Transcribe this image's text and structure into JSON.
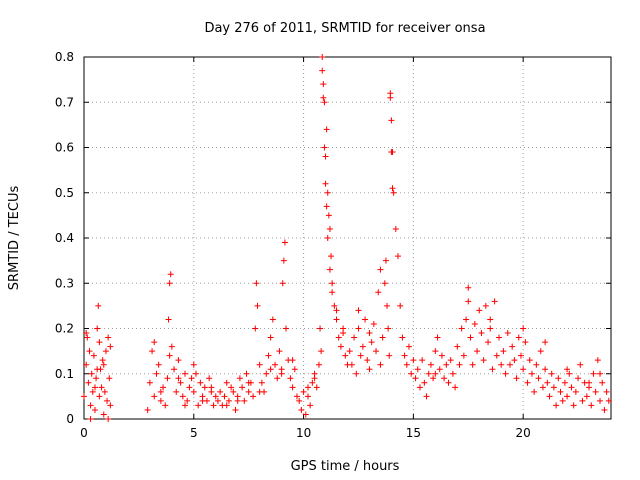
{
  "chart_data": {
    "type": "scatter",
    "title": "Day 276 of 2011, SRMTID for receiver onsa",
    "xlabel": "GPS time / hours",
    "ylabel": "SRMTID / TECUs",
    "xlim": [
      0,
      24
    ],
    "ylim": [
      0,
      0.8
    ],
    "xticks": [
      0,
      5,
      10,
      15,
      20
    ],
    "xtick_labels": [
      "0",
      "5",
      "10",
      "15",
      "20"
    ],
    "yticks": [
      0,
      0.1,
      0.2,
      0.3,
      0.4,
      0.5,
      0.6,
      0.7,
      0.8
    ],
    "ytick_labels": [
      "0",
      "0.1",
      "0.2",
      "0.3",
      "0.4",
      "0.5",
      "0.6",
      "0.7",
      "0.8"
    ],
    "grid": true,
    "marker": "plus",
    "marker_color": "#ff0000",
    "series": [
      {
        "name": "onsa",
        "x": [
          0.0,
          0.1,
          0.15,
          0.2,
          0.25,
          0.3,
          0.35,
          0.4,
          0.45,
          0.5,
          0.55,
          0.6,
          0.65,
          0.7,
          0.75,
          0.8,
          0.85,
          0.9,
          0.95,
          1.0,
          1.05,
          1.1,
          1.15,
          1.2,
          0.6,
          0.7,
          1.2,
          0.1,
          0.3,
          0.5,
          0.9,
          1.1,
          2.9,
          3.0,
          3.1,
          3.2,
          3.3,
          3.4,
          3.5,
          3.6,
          3.7,
          3.8,
          3.85,
          3.9,
          3.95,
          4.0,
          4.1,
          4.2,
          4.3,
          4.4,
          4.5,
          4.6,
          4.7,
          4.8,
          4.9,
          5.0,
          5.1,
          5.2,
          5.3,
          5.4,
          5.5,
          5.6,
          5.7,
          5.8,
          5.9,
          6.0,
          3.2,
          3.5,
          3.9,
          4.3,
          4.6,
          5.0,
          5.4,
          5.8,
          6.1,
          6.2,
          6.3,
          6.4,
          6.5,
          6.6,
          6.7,
          6.8,
          6.9,
          7.0,
          7.1,
          7.2,
          7.3,
          7.4,
          7.5,
          7.6,
          7.7,
          7.8,
          7.85,
          7.9,
          8.0,
          8.1,
          8.2,
          8.3,
          8.4,
          8.5,
          8.6,
          8.7,
          8.8,
          8.9,
          9.0,
          9.05,
          9.1,
          9.15,
          9.2,
          9.3,
          9.4,
          9.5,
          9.6,
          9.7,
          6.5,
          7.0,
          7.5,
          8.0,
          8.5,
          9.0,
          9.5,
          9.8,
          9.9,
          10.0,
          10.1,
          10.2,
          10.3,
          10.4,
          10.5,
          10.6,
          10.7,
          10.75,
          10.8,
          10.85,
          10.9,
          10.95,
          11.0,
          11.05,
          11.1,
          11.15,
          11.2,
          11.25,
          11.3,
          11.4,
          11.5,
          11.6,
          11.7,
          11.8,
          11.9,
          12.0,
          10.85,
          10.9,
          10.95,
          11.0,
          11.05,
          11.1,
          11.2,
          11.3,
          11.5,
          11.8,
          10.2,
          10.5,
          12.1,
          12.2,
          12.3,
          12.4,
          12.5,
          12.6,
          12.7,
          12.8,
          12.9,
          13.0,
          13.1,
          13.2,
          13.3,
          13.4,
          13.5,
          13.6,
          13.7,
          13.75,
          13.8,
          13.85,
          13.9,
          13.95,
          14.0,
          14.05,
          14.1,
          14.2,
          14.3,
          14.4,
          14.5,
          14.6,
          14.7,
          14.8,
          14.9,
          15.0,
          13.95,
          14.0,
          14.05,
          13.5,
          12.5,
          13.0,
          15.1,
          15.2,
          15.3,
          15.4,
          15.5,
          15.6,
          15.7,
          15.8,
          15.9,
          16.0,
          16.1,
          16.2,
          16.3,
          16.4,
          16.5,
          16.6,
          16.7,
          16.8,
          16.9,
          17.0,
          17.1,
          17.2,
          17.3,
          17.4,
          17.5,
          17.6,
          17.7,
          17.8,
          17.9,
          18.0,
          18.1,
          18.2,
          18.3,
          18.4,
          18.5,
          18.6,
          18.7,
          18.8,
          18.9,
          19.0,
          17.5,
          18.5,
          16.0,
          19.1,
          19.2,
          19.3,
          19.4,
          19.5,
          19.6,
          19.7,
          19.8,
          19.9,
          20.0,
          20.1,
          20.2,
          20.3,
          20.4,
          20.5,
          20.6,
          20.7,
          20.8,
          20.9,
          21.0,
          21.1,
          21.2,
          21.3,
          21.4,
          21.5,
          21.6,
          21.7,
          21.8,
          21.9,
          22.0,
          22.1,
          22.2,
          22.3,
          22.4,
          22.5,
          22.6,
          22.7,
          22.8,
          22.9,
          23.0,
          23.1,
          23.2,
          23.3,
          23.4,
          23.5,
          23.6,
          23.7,
          23.8,
          23.9,
          20.0,
          21.0,
          22.0,
          23.0,
          23.5
        ],
        "y": [
          0.05,
          0.12,
          0.18,
          0.08,
          0.15,
          0.03,
          0.1,
          0.06,
          0.14,
          0.02,
          0.09,
          0.2,
          0.25,
          0.05,
          0.11,
          0.07,
          0.13,
          0.01,
          0.06,
          0.15,
          0.04,
          0.18,
          0.09,
          0.03,
          0.11,
          0.17,
          0.16,
          0.19,
          0.0,
          0.07,
          0.12,
          0.0,
          0.02,
          0.08,
          0.15,
          0.05,
          0.1,
          0.12,
          0.04,
          0.07,
          0.03,
          0.09,
          0.22,
          0.3,
          0.32,
          0.16,
          0.11,
          0.06,
          0.13,
          0.08,
          0.05,
          0.1,
          0.04,
          0.07,
          0.09,
          0.06,
          0.1,
          0.03,
          0.08,
          0.05,
          0.07,
          0.04,
          0.09,
          0.06,
          0.03,
          0.05,
          0.17,
          0.06,
          0.14,
          0.09,
          0.03,
          0.12,
          0.04,
          0.07,
          0.04,
          0.06,
          0.03,
          0.05,
          0.08,
          0.04,
          0.07,
          0.06,
          0.02,
          0.05,
          0.09,
          0.07,
          0.04,
          0.1,
          0.06,
          0.08,
          0.05,
          0.2,
          0.3,
          0.25,
          0.12,
          0.08,
          0.06,
          0.1,
          0.14,
          0.18,
          0.22,
          0.12,
          0.09,
          0.15,
          0.11,
          0.3,
          0.35,
          0.39,
          0.2,
          0.13,
          0.09,
          0.07,
          0.11,
          0.05,
          0.03,
          0.04,
          0.08,
          0.06,
          0.11,
          0.1,
          0.13,
          0.04,
          0.02,
          0.06,
          0.01,
          0.05,
          0.03,
          0.08,
          0.1,
          0.07,
          0.12,
          0.2,
          0.15,
          0.8,
          0.71,
          0.7,
          0.58,
          0.64,
          0.5,
          0.45,
          0.42,
          0.36,
          0.3,
          0.25,
          0.22,
          0.18,
          0.16,
          0.2,
          0.14,
          0.12,
          0.77,
          0.74,
          0.6,
          0.52,
          0.47,
          0.4,
          0.33,
          0.28,
          0.24,
          0.19,
          0.07,
          0.09,
          0.15,
          0.12,
          0.18,
          0.1,
          0.2,
          0.14,
          0.16,
          0.22,
          0.13,
          0.19,
          0.17,
          0.21,
          0.15,
          0.28,
          0.12,
          0.18,
          0.3,
          0.35,
          0.25,
          0.2,
          0.14,
          0.72,
          0.66,
          0.59,
          0.5,
          0.42,
          0.36,
          0.25,
          0.18,
          0.14,
          0.12,
          0.16,
          0.1,
          0.13,
          0.71,
          0.59,
          0.51,
          0.33,
          0.24,
          0.11,
          0.09,
          0.11,
          0.07,
          0.13,
          0.08,
          0.05,
          0.1,
          0.12,
          0.09,
          0.15,
          0.18,
          0.11,
          0.14,
          0.09,
          0.12,
          0.08,
          0.13,
          0.1,
          0.07,
          0.16,
          0.12,
          0.2,
          0.14,
          0.22,
          0.29,
          0.18,
          0.12,
          0.21,
          0.15,
          0.24,
          0.19,
          0.13,
          0.25,
          0.17,
          0.22,
          0.11,
          0.26,
          0.14,
          0.18,
          0.12,
          0.26,
          0.2,
          0.1,
          0.15,
          0.1,
          0.19,
          0.12,
          0.16,
          0.13,
          0.09,
          0.18,
          0.14,
          0.11,
          0.17,
          0.08,
          0.13,
          0.1,
          0.06,
          0.12,
          0.09,
          0.15,
          0.07,
          0.11,
          0.08,
          0.05,
          0.1,
          0.07,
          0.03,
          0.09,
          0.06,
          0.04,
          0.08,
          0.05,
          0.1,
          0.07,
          0.03,
          0.06,
          0.09,
          0.12,
          0.04,
          0.08,
          0.05,
          0.07,
          0.03,
          0.1,
          0.06,
          0.13,
          0.04,
          0.08,
          0.02,
          0.06,
          0.04,
          0.2,
          0.17,
          0.11,
          0.08,
          0.1
        ]
      }
    ]
  }
}
